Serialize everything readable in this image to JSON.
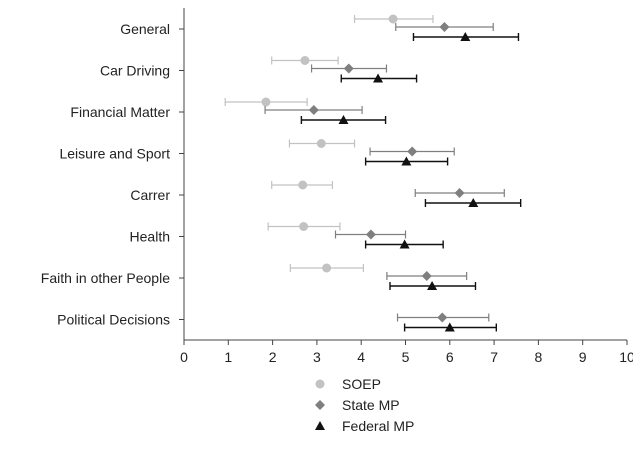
{
  "chart_data": {
    "type": "scatter",
    "title": "",
    "xlabel": "",
    "ylabel": "",
    "xlim": [
      0,
      10
    ],
    "xticks": [
      0,
      1,
      2,
      3,
      4,
      5,
      6,
      7,
      8,
      9,
      10
    ],
    "categories": [
      "General",
      "Car Driving",
      "Financial Matter",
      "Leisure and Sport",
      "Carrer",
      "Health",
      "Faith in other People",
      "Political Decisions"
    ],
    "legend_position": "bottom",
    "series": [
      {
        "name": "SOEP",
        "marker": "circle",
        "color": "#c2c2c2",
        "values": [
          4.72,
          2.73,
          1.85,
          3.1,
          2.68,
          2.7,
          3.22,
          null
        ],
        "lower": [
          3.85,
          1.98,
          0.93,
          2.38,
          1.98,
          1.9,
          2.4,
          null
        ],
        "upper": [
          5.62,
          3.48,
          2.78,
          3.85,
          3.35,
          3.52,
          4.05,
          null
        ]
      },
      {
        "name": "State MP",
        "marker": "diamond",
        "color": "#7f7f7f",
        "values": [
          5.88,
          3.72,
          2.93,
          5.15,
          6.22,
          4.22,
          5.48,
          5.83
        ],
        "lower": [
          4.78,
          2.88,
          1.83,
          4.2,
          5.22,
          3.42,
          4.58,
          4.82
        ],
        "upper": [
          6.98,
          4.57,
          4.02,
          6.1,
          7.23,
          5.0,
          6.38,
          6.88
        ]
      },
      {
        "name": "Federal MP",
        "marker": "triangle",
        "color": "#111111",
        "values": [
          6.35,
          4.38,
          3.6,
          5.02,
          6.53,
          4.98,
          5.6,
          6.0
        ],
        "lower": [
          5.18,
          3.55,
          2.65,
          4.1,
          5.45,
          4.1,
          4.65,
          4.98
        ],
        "upper": [
          7.55,
          5.25,
          4.55,
          5.95,
          7.6,
          5.85,
          6.58,
          7.05
        ]
      }
    ]
  }
}
